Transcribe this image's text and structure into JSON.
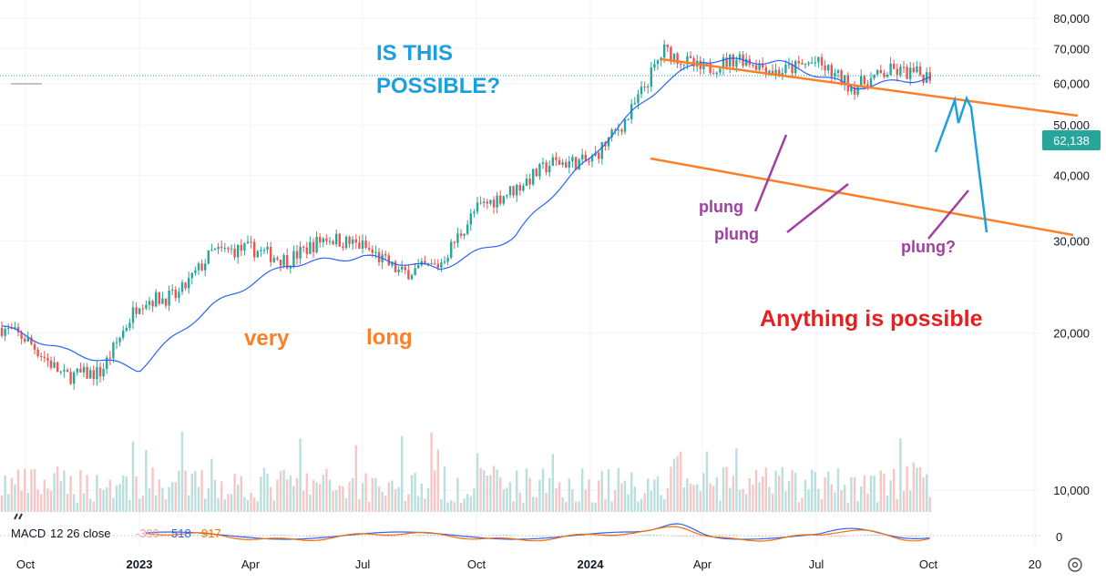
{
  "chart_data": {
    "type": "candlestick",
    "ylim": [
      0,
      80000
    ],
    "y_scale": "log",
    "y_ticks": [
      "80,000",
      "70,000",
      "60,000",
      "50,000",
      "40,000",
      "30,000",
      "20,000",
      "10,000"
    ],
    "y_tick_values": [
      80000,
      70000,
      60000,
      50000,
      40000,
      30000,
      20000,
      10000
    ],
    "x_ticks": [
      "Oct",
      "2023",
      "Apr",
      "Jul",
      "Oct",
      "2024",
      "Apr",
      "Jul",
      "Oct",
      "20"
    ],
    "x_ticks_bold": [
      false,
      true,
      false,
      false,
      false,
      true,
      false,
      false,
      false,
      false
    ],
    "grid": true,
    "last_price": 62138,
    "last_price_label": "62,138",
    "series": [
      {
        "name": "price",
        "x": [
          "2022-09",
          "2022-10",
          "2022-11",
          "2022-12",
          "2023-01",
          "2023-02",
          "2023-03",
          "2023-04",
          "2023-05",
          "2023-06",
          "2023-07",
          "2023-08",
          "2023-09",
          "2023-10",
          "2023-11",
          "2023-12",
          "2024-01",
          "2024-02",
          "2024-03",
          "2024-04",
          "2024-05",
          "2024-06",
          "2024-07",
          "2024-08",
          "2024-09",
          "2024-10"
        ],
        "close": [
          21000,
          19500,
          16500,
          16800,
          23000,
          23500,
          28500,
          29000,
          27500,
          30500,
          29300,
          26000,
          27000,
          34500,
          37700,
          42300,
          42500,
          51800,
          69500,
          63500,
          67500,
          63000,
          66000,
          59000,
          63500,
          62138
        ]
      },
      {
        "name": "moving average",
        "x": [
          "2022-09",
          "2022-11",
          "2023-01",
          "2023-03",
          "2023-05",
          "2023-07",
          "2023-09",
          "2023-11",
          "2024-01",
          "2024-03",
          "2024-04",
          "2024-06",
          "2024-08",
          "2024-10"
        ],
        "values": [
          21000,
          18500,
          17000,
          22500,
          27000,
          28000,
          26500,
          30500,
          43000,
          60000,
          66500,
          66000,
          59000,
          61500
        ]
      }
    ],
    "macd": {
      "label": "MACD",
      "params": "12 26 close",
      "values": [
        "-399",
        "518",
        "917"
      ],
      "value_colors": [
        "#f2a2a2",
        "#2962ff",
        "#ff6d00"
      ],
      "zero_label": "0"
    },
    "annotations": {
      "question": [
        "IS THIS",
        "POSSIBLE?"
      ],
      "very": "very",
      "long": "long",
      "plung1": "plung",
      "plung2": "plung",
      "plung3": "plung?",
      "anything": "Anything is possible"
    },
    "colors": {
      "up": "#26a69a",
      "down": "#ef5350",
      "ma": "#2962ff",
      "channel": "#ff7f27",
      "projection": "#1ea0e0",
      "plung": "#a040a0",
      "anything": "#e52020",
      "question": "#1a9fe0",
      "last_price_bg": "#26a69a"
    }
  }
}
